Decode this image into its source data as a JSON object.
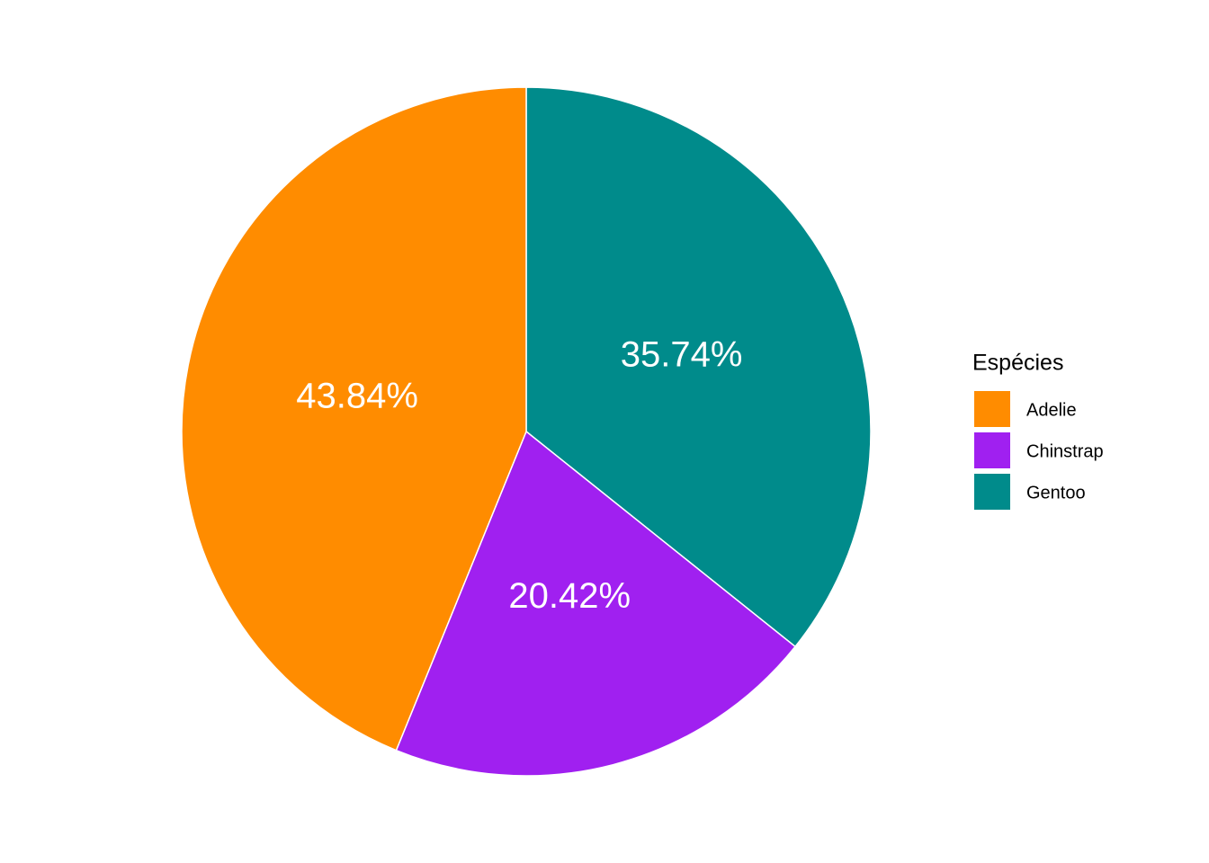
{
  "chart_data": {
    "type": "pie",
    "legend_title": "Espécies",
    "categories": [
      "Adelie",
      "Chinstrap",
      "Gentoo"
    ],
    "values": [
      43.84,
      20.42,
      35.74
    ],
    "value_labels": [
      "43.84%",
      "20.42%",
      "35.74%"
    ],
    "colors": [
      "#ff8c00",
      "#a020f0",
      "#008b8b"
    ],
    "legend_position": "right"
  }
}
